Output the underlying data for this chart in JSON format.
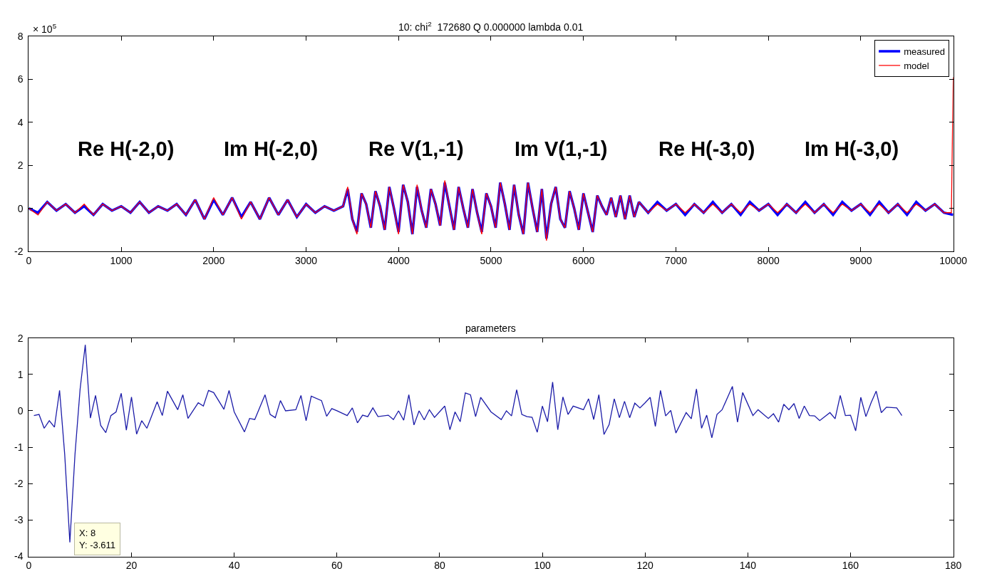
{
  "chart_data": [
    {
      "type": "line",
      "title": "10: chi$^{2}$  172680 Q 0.000000 lambda 0.01",
      "xlim": [
        0,
        10000
      ],
      "xticks": [
        0,
        1000,
        2000,
        3000,
        4000,
        5000,
        6000,
        7000,
        8000,
        9000,
        10000
      ],
      "ylim": [
        -2,
        8
      ],
      "yticks": [
        -2,
        0,
        2,
        4,
        6,
        8
      ],
      "legend": "top right",
      "x": [
        0,
        100,
        200,
        300,
        400,
        500,
        600,
        700,
        800,
        900,
        1000,
        1100,
        1200,
        1300,
        1400,
        1500,
        1600,
        1700,
        1800,
        1900,
        2000,
        2100,
        2200,
        2300,
        2400,
        2500,
        2600,
        2700,
        2800,
        2900,
        3000,
        3100,
        3200,
        3300,
        3400,
        3450,
        3500,
        3550,
        3600,
        3650,
        3700,
        3750,
        3800,
        3850,
        3900,
        3950,
        4000,
        4050,
        4100,
        4150,
        4200,
        4250,
        4300,
        4350,
        4400,
        4450,
        4500,
        4550,
        4600,
        4650,
        4700,
        4750,
        4800,
        4850,
        4900,
        4950,
        5000,
        5050,
        5100,
        5150,
        5200,
        5250,
        5300,
        5350,
        5400,
        5450,
        5500,
        5550,
        5600,
        5650,
        5700,
        5750,
        5800,
        5850,
        5900,
        5950,
        6000,
        6050,
        6100,
        6150,
        6200,
        6250,
        6300,
        6350,
        6400,
        6450,
        6500,
        6550,
        6600,
        6700,
        6800,
        6900,
        7000,
        7100,
        7200,
        7300,
        7400,
        7500,
        7600,
        7700,
        7800,
        7900,
        8000,
        8100,
        8200,
        8300,
        8400,
        8500,
        8600,
        8700,
        8800,
        8900,
        9000,
        9100,
        9200,
        9300,
        9400,
        9500,
        9600,
        9700,
        9800,
        9900,
        10000
      ],
      "series": [
        {
          "name": "measured",
          "color": "#0000ff",
          "values": [
            0.0,
            -0.2,
            0.3,
            -0.1,
            0.2,
            -0.2,
            0.1,
            -0.3,
            0.2,
            -0.1,
            0.1,
            -0.2,
            0.3,
            -0.2,
            0.1,
            -0.1,
            0.2,
            -0.3,
            0.4,
            -0.5,
            0.4,
            -0.3,
            0.5,
            -0.4,
            0.3,
            -0.5,
            0.5,
            -0.3,
            0.4,
            -0.4,
            0.2,
            -0.2,
            0.1,
            -0.1,
            0.1,
            0.9,
            -0.5,
            -1.1,
            0.7,
            0.2,
            -0.9,
            0.8,
            0.1,
            -1.0,
            1.0,
            0.0,
            -1.1,
            1.1,
            0.3,
            -1.2,
            1.0,
            -0.1,
            -0.9,
            0.9,
            0.2,
            -0.8,
            1.2,
            0.1,
            -1.0,
            1.0,
            0.0,
            -0.9,
            0.9,
            -0.2,
            -1.1,
            0.7,
            0.1,
            -0.9,
            1.2,
            0.2,
            -1.0,
            1.1,
            -0.3,
            -1.2,
            1.2,
            0.0,
            -1.1,
            0.9,
            -1.4,
            0.2,
            1.0,
            -0.5,
            -0.9,
            0.8,
            0.0,
            -1.0,
            0.7,
            -0.2,
            -1.1,
            0.6,
            0.1,
            -0.3,
            0.5,
            -0.4,
            0.6,
            -0.5,
            0.6,
            -0.4,
            0.3,
            -0.2,
            0.3,
            -0.1,
            0.2,
            -0.3,
            0.2,
            -0.2,
            0.3,
            -0.2,
            0.2,
            -0.3,
            0.3,
            -0.1,
            0.2,
            -0.3,
            0.2,
            -0.2,
            0.3,
            -0.2,
            0.2,
            -0.3,
            0.3,
            -0.1,
            0.2,
            -0.3,
            0.3,
            -0.2,
            0.2,
            -0.3,
            0.3,
            -0.1,
            0.2,
            -0.2,
            -0.3
          ]
        },
        {
          "name": "model",
          "color": "#ff0000",
          "x": [
            0,
            100,
            200,
            300,
            400,
            500,
            600,
            700,
            800,
            900,
            1000,
            1100,
            1200,
            1300,
            1400,
            1500,
            1600,
            1700,
            1800,
            1900,
            2000,
            2100,
            2200,
            2300,
            2400,
            2500,
            2600,
            2700,
            2800,
            2900,
            3000,
            3100,
            3200,
            3300,
            3400,
            3450,
            3500,
            3550,
            3600,
            3650,
            3700,
            3750,
            3800,
            3850,
            3900,
            3950,
            4000,
            4050,
            4100,
            4150,
            4200,
            4250,
            4300,
            4350,
            4400,
            4450,
            4500,
            4550,
            4600,
            4650,
            4700,
            4750,
            4800,
            4850,
            4900,
            4950,
            5000,
            5050,
            5100,
            5150,
            5200,
            5250,
            5300,
            5350,
            5400,
            5450,
            5500,
            5550,
            5600,
            5650,
            5700,
            5750,
            5800,
            5850,
            5900,
            5950,
            6000,
            6050,
            6100,
            6150,
            6200,
            6250,
            6300,
            6350,
            6400,
            6450,
            6500,
            6550,
            6600,
            6700,
            6800,
            6900,
            7000,
            7100,
            7200,
            7300,
            7400,
            7500,
            7600,
            7700,
            7800,
            7900,
            8000,
            8100,
            8200,
            8300,
            8400,
            8500,
            8600,
            8700,
            8800,
            8900,
            9000,
            9100,
            9200,
            9300,
            9400,
            9500,
            9600,
            9700,
            9800,
            9900,
            9980,
            10000
          ],
          "values": [
            0.0,
            -0.3,
            0.3,
            -0.1,
            0.2,
            -0.2,
            0.2,
            -0.3,
            0.2,
            -0.1,
            0.1,
            -0.2,
            0.3,
            -0.2,
            0.1,
            -0.1,
            0.2,
            -0.3,
            0.4,
            -0.5,
            0.5,
            -0.3,
            0.5,
            -0.5,
            0.3,
            -0.5,
            0.5,
            -0.3,
            0.4,
            -0.4,
            0.2,
            -0.2,
            0.1,
            -0.1,
            0.1,
            1.0,
            -0.5,
            -1.2,
            0.7,
            0.2,
            -0.9,
            0.8,
            0.1,
            -1.0,
            1.0,
            0.0,
            -1.2,
            1.1,
            0.3,
            -1.2,
            1.1,
            -0.1,
            -0.9,
            0.9,
            0.2,
            -0.8,
            1.3,
            0.1,
            -1.0,
            1.0,
            0.0,
            -0.9,
            0.9,
            -0.2,
            -1.2,
            0.7,
            0.1,
            -0.9,
            1.2,
            0.2,
            -1.0,
            1.1,
            -0.3,
            -1.2,
            1.2,
            0.0,
            -1.1,
            0.9,
            -1.5,
            0.2,
            1.0,
            -0.5,
            -0.9,
            0.8,
            0.0,
            -1.0,
            0.7,
            -0.2,
            -1.1,
            0.6,
            0.1,
            -0.3,
            0.5,
            -0.4,
            0.6,
            -0.5,
            0.6,
            -0.4,
            0.3,
            -0.2,
            0.2,
            -0.1,
            0.2,
            -0.2,
            0.2,
            -0.2,
            0.2,
            -0.2,
            0.2,
            -0.2,
            0.2,
            -0.1,
            0.2,
            -0.2,
            0.2,
            -0.2,
            0.2,
            -0.2,
            0.2,
            -0.2,
            0.2,
            -0.1,
            0.2,
            -0.2,
            0.2,
            -0.2,
            0.2,
            -0.2,
            0.2,
            -0.1,
            0.2,
            -0.2,
            -0.2,
            6.1
          ]
        }
      ],
      "annotations": [
        "× 10$^{5}$",
        "Re H(-2,0)",
        "Im H(-2,0)",
        "Re V(1,-1)",
        "Im V(1,-1)",
        "Re H(-3,0)",
        "Im H(-3,0)"
      ]
    },
    {
      "type": "line",
      "title": "parameters",
      "xlim": [
        0,
        180
      ],
      "xticks": [
        0,
        20,
        40,
        60,
        80,
        100,
        120,
        140,
        160,
        180
      ],
      "ylim": [
        -4,
        2
      ],
      "yticks": [
        -4,
        -3,
        -2,
        -1,
        0,
        1,
        2
      ],
      "x": [
        1,
        2,
        3,
        4,
        5,
        6,
        7,
        8,
        9,
        10,
        11,
        12,
        13,
        14,
        15,
        16,
        17,
        18,
        19,
        20,
        21,
        22,
        23,
        25,
        26,
        27,
        29,
        30,
        31,
        33,
        34,
        35,
        36,
        38,
        39,
        40,
        42,
        43,
        44,
        46,
        47,
        48,
        49,
        50,
        52,
        53,
        54,
        55,
        57,
        58,
        59,
        60,
        62,
        63,
        64,
        65,
        66,
        67,
        68,
        70,
        71,
        72,
        73,
        74,
        75,
        76,
        77,
        78,
        79,
        81,
        82,
        83,
        84,
        85,
        86,
        87,
        88,
        90,
        92,
        93,
        94,
        95,
        96,
        97,
        98,
        99,
        100,
        101,
        102,
        103,
        104,
        105,
        106,
        108,
        109,
        110,
        111,
        112,
        113,
        114,
        115,
        116,
        117,
        118,
        119,
        120,
        121,
        122,
        123,
        124,
        125,
        126,
        128,
        129,
        130,
        131,
        132,
        133,
        134,
        135,
        137,
        138,
        139,
        141,
        142,
        144,
        145,
        146,
        147,
        148,
        149,
        150,
        151,
        152,
        153,
        154,
        156,
        157,
        158,
        159,
        160,
        161,
        162,
        163,
        164,
        165,
        166,
        167,
        169,
        170
      ],
      "series": [
        {
          "color": "#1c1ca8",
          "values": [
            -0.13,
            -0.1,
            -0.48,
            -0.27,
            -0.45,
            0.56,
            -1.2,
            -3.611,
            -1.2,
            0.6,
            1.81,
            -0.2,
            0.42,
            -0.4,
            -0.6,
            -0.13,
            -0.03,
            0.48,
            -0.53,
            0.38,
            -0.64,
            -0.27,
            -0.48,
            0.25,
            -0.13,
            0.54,
            0.03,
            0.44,
            -0.21,
            0.22,
            0.13,
            0.56,
            0.5,
            0.04,
            0.56,
            -0.03,
            -0.58,
            -0.21,
            -0.24,
            0.44,
            -0.1,
            -0.19,
            0.28,
            0.0,
            0.03,
            0.42,
            -0.27,
            0.4,
            0.28,
            -0.15,
            0.06,
            0.0,
            -0.13,
            0.08,
            -0.33,
            -0.12,
            -0.16,
            0.08,
            -0.16,
            -0.12,
            -0.24,
            0.0,
            -0.26,
            0.44,
            -0.39,
            0.0,
            -0.25,
            0.03,
            -0.18,
            0.13,
            -0.52,
            -0.03,
            -0.3,
            0.49,
            0.44,
            -0.16,
            0.37,
            -0.03,
            -0.24,
            0.0,
            -0.14,
            0.58,
            -0.1,
            -0.16,
            -0.18,
            -0.59,
            0.13,
            -0.3,
            0.79,
            -0.52,
            0.38,
            -0.1,
            0.13,
            0.03,
            0.33,
            -0.24,
            0.44,
            -0.65,
            -0.38,
            0.33,
            -0.19,
            0.26,
            -0.19,
            0.21,
            0.08,
            0.22,
            0.37,
            -0.43,
            0.56,
            -0.14,
            0.01,
            -0.61,
            -0.05,
            -0.22,
            0.6,
            -0.48,
            -0.12,
            -0.74,
            -0.1,
            0.03,
            0.67,
            -0.31,
            0.5,
            -0.13,
            0.03,
            -0.21,
            -0.08,
            -0.31,
            0.18,
            0.03,
            0.2,
            -0.21,
            0.13,
            -0.13,
            -0.14,
            -0.27,
            -0.05,
            -0.22,
            0.42,
            -0.13,
            -0.12,
            -0.55,
            0.37,
            -0.16,
            0.22,
            0.54,
            -0.05,
            0.1,
            0.08,
            -0.13
          ]
        }
      ],
      "annotations": [
        {
          "text": "X: 8\nY: -3.611",
          "x": 8,
          "y": -3.611
        }
      ]
    }
  ]
}
